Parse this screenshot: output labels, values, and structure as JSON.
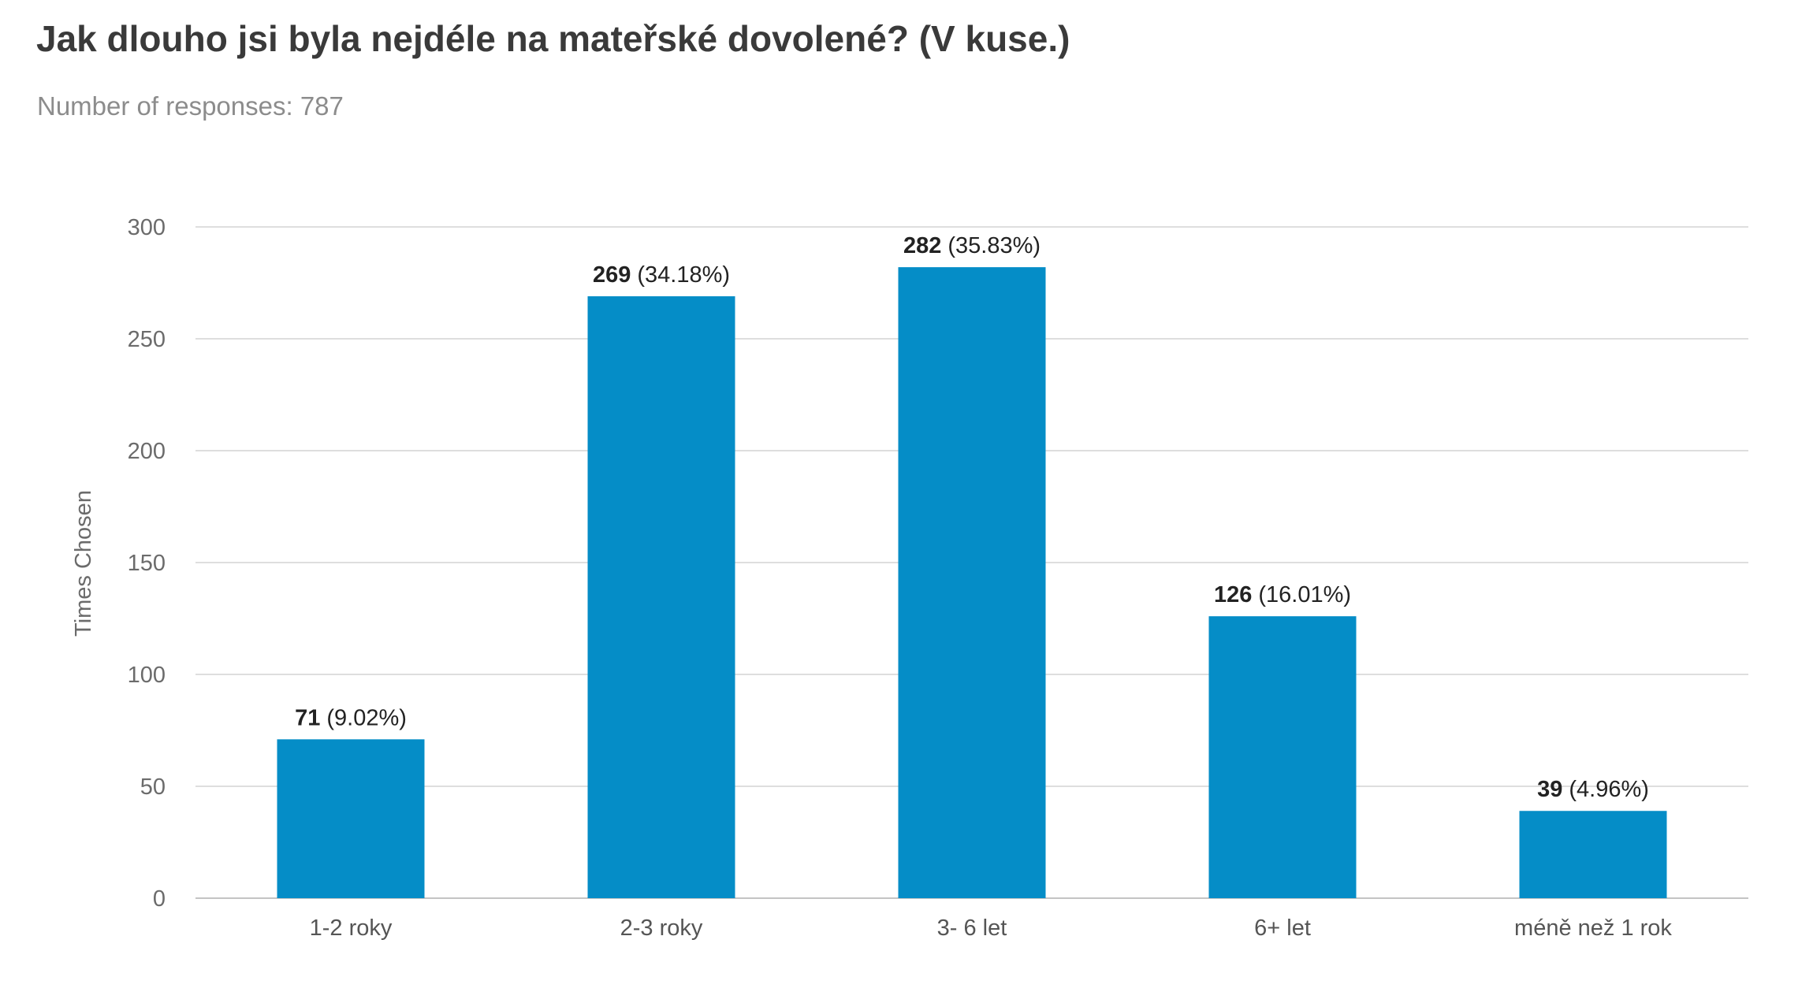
{
  "chart_data": {
    "type": "bar",
    "title": "Jak dlouho jsi byla nejdéle na mateřské dovolené? (V kuse.)",
    "subtitle": "Number of responses: 787",
    "ylabel": "Times Chosen",
    "xlabel": "",
    "categories": [
      "1-2 roky",
      "2-3 roky",
      "3- 6 let",
      "6+ let",
      "méně než 1 rok"
    ],
    "values": [
      71,
      269,
      282,
      126,
      39
    ],
    "percent_labels": [
      "(9.02%)",
      "(34.18%)",
      "(35.83%)",
      "(16.01%)",
      "(4.96%)"
    ],
    "ylim": [
      0,
      300
    ],
    "yticks": [
      0,
      50,
      100,
      150,
      200,
      250,
      300
    ],
    "grid": true,
    "bar_color": "#058dc7"
  }
}
